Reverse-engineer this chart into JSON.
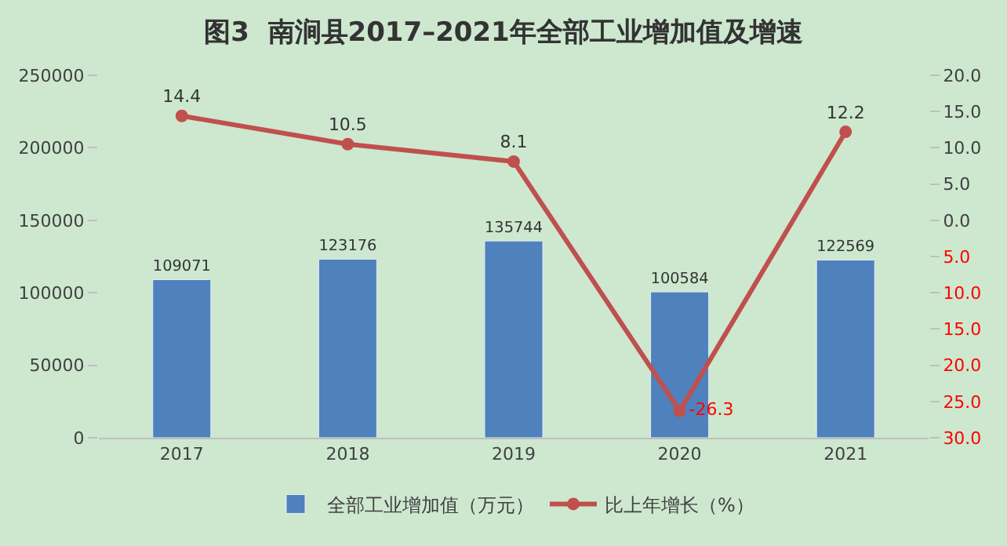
{
  "chart_data": {
    "type": "bar",
    "title": "图3  南涧县2017–2021年全部工业增加值及增速",
    "categories": [
      "2017",
      "2018",
      "2019",
      "2020",
      "2021"
    ],
    "series": [
      {
        "name": "全部工业增加值（万元）",
        "color": "#4f81bd",
        "values": [
          109071,
          123176,
          135744,
          100584,
          122569
        ]
      },
      {
        "name": "比上年增长（%）",
        "type": "line",
        "axis": "y2",
        "color": "#c0504d",
        "values": [
          14.4,
          10.5,
          8.1,
          -26.3,
          12.2
        ]
      }
    ],
    "ylim": [
      0,
      250000
    ],
    "yticks": [
      0,
      50000,
      100000,
      150000,
      200000,
      250000
    ],
    "y2lim": [
      -30,
      20
    ],
    "y2ticks": [
      {
        "value": 20,
        "label": "20.0"
      },
      {
        "value": 15,
        "label": "15.0"
      },
      {
        "value": 10,
        "label": "10.0"
      },
      {
        "value": 5,
        "label": "5.0"
      },
      {
        "value": 0,
        "label": "0.0"
      },
      {
        "value": -5,
        "label": "5.0"
      },
      {
        "value": -10,
        "label": "10.0"
      },
      {
        "value": -15,
        "label": "15.0"
      },
      {
        "value": -20,
        "label": "20.0"
      },
      {
        "value": -25,
        "label": "25.0"
      },
      {
        "value": -30,
        "label": "30.0"
      }
    ],
    "data_labels": true,
    "grid": false,
    "legend": "bottom",
    "marker": "circle",
    "line_style": "solid"
  }
}
